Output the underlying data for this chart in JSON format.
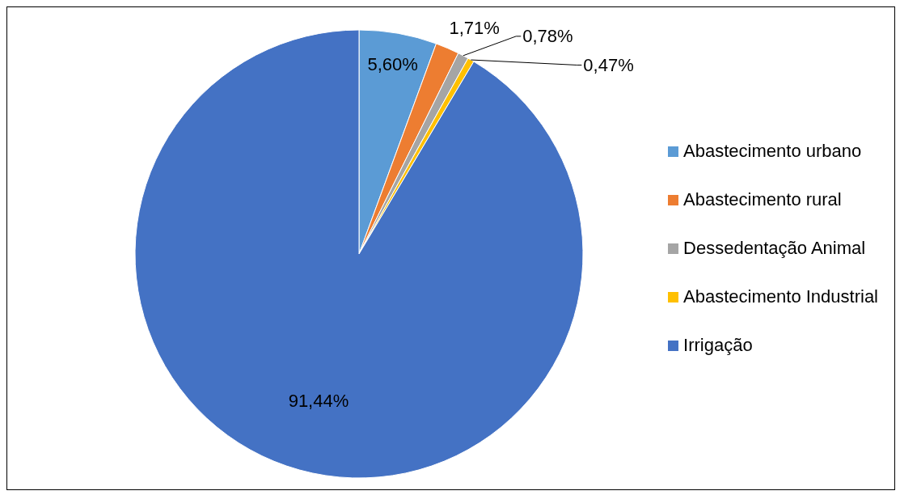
{
  "chart_data": {
    "type": "pie",
    "categories": [
      "Abastecimento urbano",
      "Abastecimento rural",
      "Dessedentação Animal",
      "Abastecimento Industrial",
      "Irrigação"
    ],
    "values": [
      5.6,
      1.71,
      0.78,
      0.47,
      91.44
    ],
    "colors": [
      "#5b9bd5",
      "#ed7d31",
      "#a5a5a5",
      "#ffc000",
      "#4472c4"
    ],
    "value_labels": [
      "5,60%",
      "1,71%",
      "0,78%",
      "0,47%",
      "91,44%"
    ],
    "legend": "right"
  }
}
